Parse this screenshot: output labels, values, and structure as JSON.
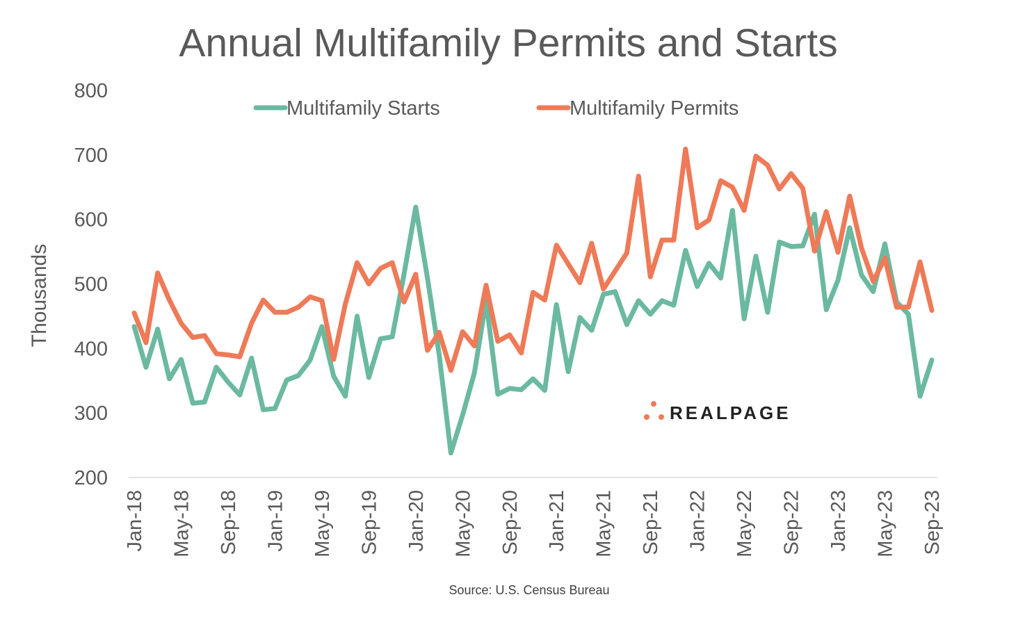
{
  "chart_data": {
    "type": "line",
    "title": "Annual Multifamily Permits and Starts",
    "ylabel": "Thousands",
    "xlabel": "",
    "ylim": [
      200,
      800
    ],
    "yticks": [
      200,
      300,
      400,
      500,
      600,
      700,
      800
    ],
    "grid": false,
    "legend_position": "top-center",
    "x_tick_labels": [
      "Jan-18",
      "May-18",
      "Sep-18",
      "Jan-19",
      "May-19",
      "Sep-19",
      "Jan-20",
      "May-20",
      "Sep-20",
      "Jan-21",
      "May-21",
      "Sep-21",
      "Jan-22",
      "May-22",
      "Sep-22",
      "Jan-23",
      "May-23",
      "Sep-23"
    ],
    "x_start": "Jan-18",
    "x_end": "Sep-23",
    "x_frequency": "monthly",
    "series": [
      {
        "name": "Multifamily Starts",
        "color": "#6BB9A0",
        "values": [
          434,
          371,
          430,
          353,
          383,
          315,
          317,
          371,
          348,
          328,
          385,
          305,
          307,
          351,
          358,
          382,
          434,
          357,
          326,
          450,
          355,
          415,
          418,
          515,
          619,
          509,
          390,
          238,
          297,
          362,
          474,
          329,
          338,
          336,
          353,
          335,
          468,
          364,
          448,
          428,
          484,
          488,
          437,
          474,
          453,
          474,
          467,
          552,
          496,
          532,
          509,
          614,
          446,
          543,
          456,
          565,
          558,
          559,
          608,
          460,
          506,
          587,
          514,
          488,
          562,
          472,
          453,
          326,
          382
        ]
      },
      {
        "name": "Multifamily Permits",
        "color": "#EE7A57",
        "values": [
          455,
          409,
          517,
          475,
          439,
          417,
          420,
          392,
          390,
          387,
          439,
          475,
          456,
          456,
          464,
          480,
          474,
          383,
          469,
          533,
          500,
          524,
          533,
          472,
          515,
          397,
          425,
          366,
          426,
          404,
          498,
          411,
          421,
          393,
          487,
          475,
          560,
          531,
          502,
          563,
          492,
          520,
          548,
          667,
          511,
          568,
          568,
          709,
          587,
          599,
          660,
          650,
          614,
          698,
          684,
          647,
          671,
          648,
          551,
          612,
          549,
          636,
          556,
          504,
          540,
          464,
          464,
          534,
          459
        ]
      }
    ],
    "source": "Source: U.S. Census Bureau"
  },
  "logo": {
    "text": "REALPAGE",
    "color": "#EE7A57"
  }
}
